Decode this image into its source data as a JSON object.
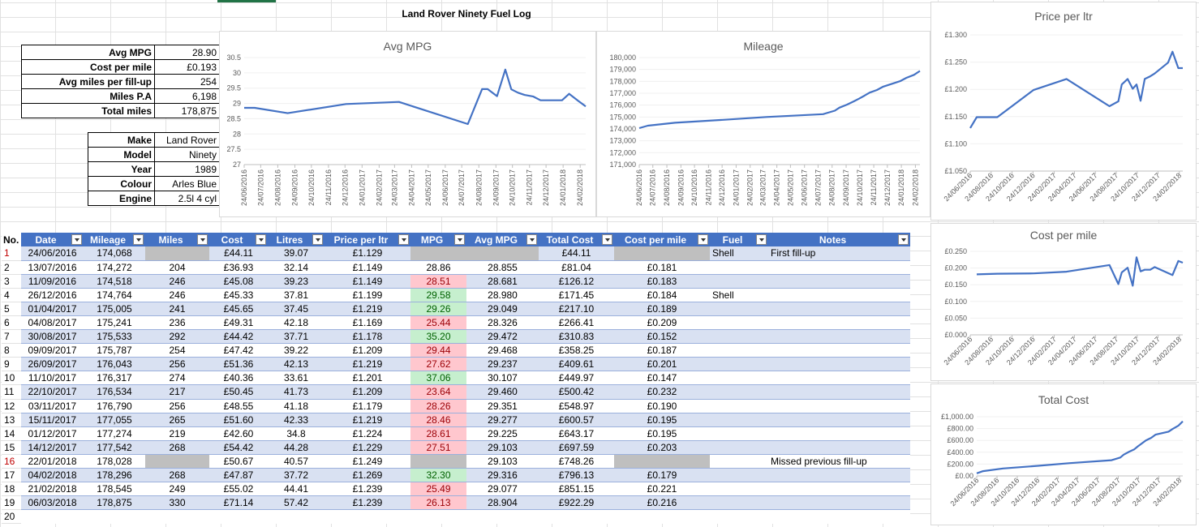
{
  "sheet": {
    "title": "Land Rover Ninety Fuel Log"
  },
  "summary": [
    {
      "label": "Avg MPG",
      "value": "28.90"
    },
    {
      "label": "Cost per mile",
      "value": "£0.193"
    },
    {
      "label": "Avg miles per fill-up",
      "value": "254"
    },
    {
      "label": "Miles P.A",
      "value": "6,198"
    },
    {
      "label": "Total miles",
      "value": "178,875"
    }
  ],
  "vehicle": [
    {
      "label": "Make",
      "value": "Land Rover"
    },
    {
      "label": "Model",
      "value": "Ninety"
    },
    {
      "label": "Year",
      "value": "1989"
    },
    {
      "label": "Colour",
      "value": "Arles Blue"
    },
    {
      "label": "Engine",
      "value": "2.5l 4 cyl"
    }
  ],
  "table": {
    "no_label": "No.",
    "headers": [
      "Date",
      "Mileage",
      "Miles",
      "Cost",
      "Litres",
      "Price per ltr",
      "MPG",
      "Avg MPG",
      "Total Cost",
      "Cost per mile",
      "Fuel",
      "Notes"
    ],
    "rows": [
      {
        "no": "1",
        "date": "24/06/2016",
        "mileage": "174,068",
        "miles": "",
        "cost": "£44.11",
        "litres": "39.07",
        "ppl": "£1.129",
        "mpg": "",
        "avg": "",
        "total": "£44.11",
        "cpm": "",
        "fuel": "Shell",
        "notes": "First fill-up"
      },
      {
        "no": "2",
        "date": "13/07/2016",
        "mileage": "174,272",
        "miles": "204",
        "cost": "£36.93",
        "litres": "32.14",
        "ppl": "£1.149",
        "mpg": "28.86",
        "avg": "28.855",
        "total": "£81.04",
        "cpm": "£0.181",
        "fuel": "",
        "notes": ""
      },
      {
        "no": "3",
        "date": "11/09/2016",
        "mileage": "174,518",
        "miles": "246",
        "cost": "£45.08",
        "litres": "39.23",
        "ppl": "£1.149",
        "mpg": "28.51",
        "avg": "28.681",
        "total": "£126.12",
        "cpm": "£0.183",
        "fuel": "",
        "notes": ""
      },
      {
        "no": "4",
        "date": "26/12/2016",
        "mileage": "174,764",
        "miles": "246",
        "cost": "£45.33",
        "litres": "37.81",
        "ppl": "£1.199",
        "mpg": "29.58",
        "avg": "28.980",
        "total": "£171.45",
        "cpm": "£0.184",
        "fuel": "Shell",
        "notes": ""
      },
      {
        "no": "5",
        "date": "01/04/2017",
        "mileage": "175,005",
        "miles": "241",
        "cost": "£45.65",
        "litres": "37.45",
        "ppl": "£1.219",
        "mpg": "29.26",
        "avg": "29.049",
        "total": "£217.10",
        "cpm": "£0.189",
        "fuel": "",
        "notes": ""
      },
      {
        "no": "6",
        "date": "04/08/2017",
        "mileage": "175,241",
        "miles": "236",
        "cost": "£49.31",
        "litres": "42.18",
        "ppl": "£1.169",
        "mpg": "25.44",
        "avg": "28.326",
        "total": "£266.41",
        "cpm": "£0.209",
        "fuel": "",
        "notes": ""
      },
      {
        "no": "7",
        "date": "30/08/2017",
        "mileage": "175,533",
        "miles": "292",
        "cost": "£44.42",
        "litres": "37.71",
        "ppl": "£1.178",
        "mpg": "35.20",
        "avg": "29.472",
        "total": "£310.83",
        "cpm": "£0.152",
        "fuel": "",
        "notes": ""
      },
      {
        "no": "8",
        "date": "09/09/2017",
        "mileage": "175,787",
        "miles": "254",
        "cost": "£47.42",
        "litres": "39.22",
        "ppl": "£1.209",
        "mpg": "29.44",
        "avg": "29.468",
        "total": "£358.25",
        "cpm": "£0.187",
        "fuel": "",
        "notes": ""
      },
      {
        "no": "9",
        "date": "26/09/2017",
        "mileage": "176,043",
        "miles": "256",
        "cost": "£51.36",
        "litres": "42.13",
        "ppl": "£1.219",
        "mpg": "27.62",
        "avg": "29.237",
        "total": "£409.61",
        "cpm": "£0.201",
        "fuel": "",
        "notes": ""
      },
      {
        "no": "10",
        "date": "11/10/2017",
        "mileage": "176,317",
        "miles": "274",
        "cost": "£40.36",
        "litres": "33.61",
        "ppl": "£1.201",
        "mpg": "37.06",
        "avg": "30.107",
        "total": "£449.97",
        "cpm": "£0.147",
        "fuel": "",
        "notes": ""
      },
      {
        "no": "11",
        "date": "22/10/2017",
        "mileage": "176,534",
        "miles": "217",
        "cost": "£50.45",
        "litres": "41.73",
        "ppl": "£1.209",
        "mpg": "23.64",
        "avg": "29.460",
        "total": "£500.42",
        "cpm": "£0.232",
        "fuel": "",
        "notes": ""
      },
      {
        "no": "12",
        "date": "03/11/2017",
        "mileage": "176,790",
        "miles": "256",
        "cost": "£48.55",
        "litres": "41.18",
        "ppl": "£1.179",
        "mpg": "28.26",
        "avg": "29.351",
        "total": "£548.97",
        "cpm": "£0.190",
        "fuel": "",
        "notes": ""
      },
      {
        "no": "13",
        "date": "15/11/2017",
        "mileage": "177,055",
        "miles": "265",
        "cost": "£51.60",
        "litres": "42.33",
        "ppl": "£1.219",
        "mpg": "28.46",
        "avg": "29.277",
        "total": "£600.57",
        "cpm": "£0.195",
        "fuel": "",
        "notes": ""
      },
      {
        "no": "14",
        "date": "01/12/2017",
        "mileage": "177,274",
        "miles": "219",
        "cost": "£42.60",
        "litres": "34.8",
        "ppl": "£1.224",
        "mpg": "28.61",
        "avg": "29.225",
        "total": "£643.17",
        "cpm": "£0.195",
        "fuel": "",
        "notes": ""
      },
      {
        "no": "15",
        "date": "14/12/2017",
        "mileage": "177,542",
        "miles": "268",
        "cost": "£54.42",
        "litres": "44.28",
        "ppl": "£1.229",
        "mpg": "27.51",
        "avg": "29.103",
        "total": "£697.59",
        "cpm": "£0.203",
        "fuel": "",
        "notes": ""
      },
      {
        "no": "16",
        "date": "22/01/2018",
        "mileage": "178,028",
        "miles": "",
        "cost": "£50.67",
        "litres": "40.57",
        "ppl": "£1.249",
        "mpg": "",
        "avg": "29.103",
        "total": "£748.26",
        "cpm": "",
        "fuel": "",
        "notes": "Missed previous fill-up"
      },
      {
        "no": "17",
        "date": "04/02/2018",
        "mileage": "178,296",
        "miles": "268",
        "cost": "£47.87",
        "litres": "37.72",
        "ppl": "£1.269",
        "mpg": "32.30",
        "avg": "29.316",
        "total": "£796.13",
        "cpm": "£0.179",
        "fuel": "",
        "notes": ""
      },
      {
        "no": "18",
        "date": "21/02/2018",
        "mileage": "178,545",
        "miles": "249",
        "cost": "£55.02",
        "litres": "44.41",
        "ppl": "£1.239",
        "mpg": "25.49",
        "avg": "29.077",
        "total": "£851.15",
        "cpm": "£0.221",
        "fuel": "",
        "notes": ""
      },
      {
        "no": "19",
        "date": "06/03/2018",
        "mileage": "178,875",
        "miles": "330",
        "cost": "£71.14",
        "litres": "57.42",
        "ppl": "£1.239",
        "mpg": "26.13",
        "avg": "28.904",
        "total": "£922.29",
        "cpm": "£0.216",
        "fuel": "",
        "notes": ""
      }
    ],
    "last_row_no": "20"
  },
  "chart_data": [
    {
      "type": "line",
      "title": "Avg MPG",
      "x": [
        "24/06/2016",
        "13/07/2016",
        "11/09/2016",
        "26/12/2016",
        "01/04/2017",
        "04/08/2017",
        "30/08/2017",
        "09/09/2017",
        "26/09/2017",
        "11/10/2017",
        "22/10/2017",
        "03/11/2017",
        "15/11/2017",
        "01/12/2017",
        "14/12/2017",
        "22/01/2018",
        "04/02/2018",
        "21/02/2018",
        "06/03/2018"
      ],
      "values": [
        28.855,
        28.855,
        28.681,
        28.98,
        29.049,
        28.326,
        29.472,
        29.468,
        29.237,
        30.107,
        29.46,
        29.351,
        29.277,
        29.225,
        29.103,
        29.103,
        29.316,
        29.077,
        28.904
      ],
      "ylim": [
        27,
        30.5
      ],
      "yticks": [
        "27",
        "27.5",
        "28",
        "28.5",
        "29",
        "29.5",
        "30",
        "30.5"
      ],
      "xticks": [
        "24/06/2016",
        "24/07/2016",
        "24/08/2016",
        "24/09/2016",
        "24/10/2016",
        "24/11/2016",
        "24/12/2016",
        "24/01/2017",
        "24/02/2017",
        "24/03/2017",
        "24/04/2017",
        "24/05/2017",
        "24/06/2017",
        "24/07/2017",
        "24/08/2017",
        "24/09/2017",
        "24/10/2017",
        "24/11/2017",
        "24/12/2017",
        "24/01/2018",
        "24/02/2018"
      ],
      "color": "#4472c4"
    },
    {
      "type": "line",
      "title": "Mileage",
      "x": [
        "24/06/2016",
        "13/07/2016",
        "11/09/2016",
        "26/12/2016",
        "01/04/2017",
        "04/08/2017",
        "30/08/2017",
        "09/09/2017",
        "26/09/2017",
        "11/10/2017",
        "22/10/2017",
        "03/11/2017",
        "15/11/2017",
        "01/12/2017",
        "14/12/2017",
        "22/01/2018",
        "04/02/2018",
        "21/02/2018",
        "06/03/2018"
      ],
      "values": [
        174068,
        174272,
        174518,
        174764,
        175005,
        175241,
        175533,
        175787,
        176043,
        176317,
        176534,
        176790,
        177055,
        177274,
        177542,
        178028,
        178296,
        178545,
        178875
      ],
      "ylim": [
        171000,
        180000
      ],
      "yticks": [
        "171,000",
        "172,000",
        "173,000",
        "174,000",
        "175,000",
        "176,000",
        "177,000",
        "178,000",
        "179,000",
        "180,000"
      ],
      "xticks": [
        "24/06/2016",
        "24/07/2016",
        "24/08/2016",
        "24/09/2016",
        "24/10/2016",
        "24/11/2016",
        "24/12/2016",
        "24/01/2017",
        "24/02/2017",
        "24/03/2017",
        "24/04/2017",
        "24/05/2017",
        "24/06/2017",
        "24/07/2017",
        "24/08/2017",
        "24/09/2017",
        "24/10/2017",
        "24/11/2017",
        "24/12/2017",
        "24/01/2018",
        "24/02/2018"
      ],
      "color": "#4472c4"
    },
    {
      "type": "line",
      "title": "Price per ltr",
      "x": [
        "24/06/2016",
        "13/07/2016",
        "11/09/2016",
        "26/12/2016",
        "01/04/2017",
        "04/08/2017",
        "30/08/2017",
        "09/09/2017",
        "26/09/2017",
        "11/10/2017",
        "22/10/2017",
        "03/11/2017",
        "15/11/2017",
        "01/12/2017",
        "14/12/2017",
        "22/01/2018",
        "04/02/2018",
        "21/02/2018",
        "06/03/2018"
      ],
      "values": [
        1.129,
        1.149,
        1.149,
        1.199,
        1.219,
        1.169,
        1.178,
        1.209,
        1.219,
        1.201,
        1.209,
        1.179,
        1.219,
        1.224,
        1.229,
        1.249,
        1.269,
        1.239,
        1.239
      ],
      "ylim": [
        1.05,
        1.3
      ],
      "yticks": [
        "£1.050",
        "£1.100",
        "£1.150",
        "£1.200",
        "£1.250",
        "£1.300"
      ],
      "xticks": [
        "24/06/2016",
        "24/08/2016",
        "24/10/2016",
        "24/12/2016",
        "24/02/2017",
        "24/04/2017",
        "24/06/2017",
        "24/08/2017",
        "24/10/2017",
        "24/12/2017",
        "24/02/2018"
      ],
      "color": "#4472c4"
    },
    {
      "type": "line",
      "title": "Cost per mile",
      "x": [
        "13/07/2016",
        "11/09/2016",
        "26/12/2016",
        "01/04/2017",
        "04/08/2017",
        "30/08/2017",
        "09/09/2017",
        "26/09/2017",
        "11/10/2017",
        "22/10/2017",
        "03/11/2017",
        "15/11/2017",
        "01/12/2017",
        "14/12/2017",
        "04/02/2018",
        "21/02/2018",
        "06/03/2018"
      ],
      "values": [
        0.181,
        0.183,
        0.184,
        0.189,
        0.209,
        0.152,
        0.187,
        0.201,
        0.147,
        0.232,
        0.19,
        0.195,
        0.195,
        0.203,
        0.179,
        0.221,
        0.216
      ],
      "ylim": [
        0,
        0.25
      ],
      "yticks": [
        "£0.000",
        "£0.050",
        "£0.100",
        "£0.150",
        "£0.200",
        "£0.250"
      ],
      "xticks": [
        "24/06/2016",
        "24/08/2016",
        "24/10/2016",
        "24/12/2016",
        "24/02/2017",
        "24/04/2017",
        "24/06/2017",
        "24/08/2017",
        "24/10/2017",
        "24/12/2017",
        "24/02/2018"
      ],
      "color": "#4472c4"
    },
    {
      "type": "line",
      "title": "Total Cost",
      "x": [
        "24/06/2016",
        "13/07/2016",
        "11/09/2016",
        "26/12/2016",
        "01/04/2017",
        "04/08/2017",
        "30/08/2017",
        "09/09/2017",
        "26/09/2017",
        "11/10/2017",
        "22/10/2017",
        "03/11/2017",
        "15/11/2017",
        "01/12/2017",
        "14/12/2017",
        "22/01/2018",
        "04/02/2018",
        "21/02/2018",
        "06/03/2018"
      ],
      "values": [
        44.11,
        81.04,
        126.12,
        171.45,
        217.1,
        266.41,
        310.83,
        358.25,
        409.61,
        449.97,
        500.42,
        548.97,
        600.57,
        643.17,
        697.59,
        748.26,
        796.13,
        851.15,
        922.29
      ],
      "ylim": [
        0,
        1000
      ],
      "yticks": [
        "£0.00",
        "£200.00",
        "£400.00",
        "£600.00",
        "£800.00",
        "£1,000.00"
      ],
      "xticks": [
        "24/06/2016",
        "24/08/2016",
        "24/10/2016",
        "24/12/2016",
        "24/02/2017",
        "24/04/2017",
        "24/06/2017",
        "24/08/2017",
        "24/10/2017",
        "24/12/2017",
        "24/02/2018"
      ],
      "color": "#4472c4"
    }
  ]
}
